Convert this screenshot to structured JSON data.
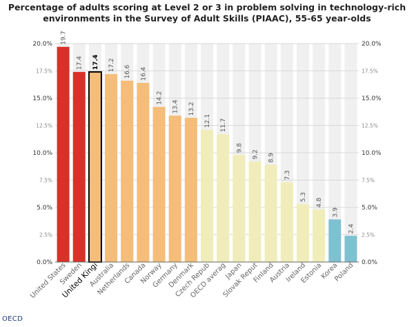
{
  "chart_data": {
    "type": "bar",
    "title_lines": [
      "Percentage of adults scoring at Level 2 or 3 in problem solving in technology-rich",
      "environments in the Survey of Adult Skills (PIAAC), 55-65 year-olds"
    ],
    "categories": [
      "United States",
      "Sweden",
      "United Kingdom",
      "Australia",
      "Netherlands",
      "Canada",
      "Norway",
      "Germany",
      "Denmark",
      "Czech Republic",
      "OECD average",
      "Japan",
      "Slovak Republic",
      "Finland",
      "Austria",
      "Ireland",
      "Estonia",
      "Korea",
      "Poland"
    ],
    "category_labels": [
      "United States",
      "Sweden",
      "United Kingi",
      "Australia",
      "Netherlands",
      "Canada",
      "Norway",
      "Germany",
      "Denmark",
      "Czech Repub",
      "OECD averag",
      "Japan",
      "Slovak Reput",
      "Finland",
      "Austria",
      "Ireland",
      "Estonia",
      "Korea",
      "Poland"
    ],
    "values": [
      19.7,
      17.4,
      17.4,
      17.2,
      16.6,
      16.4,
      14.2,
      13.4,
      13.2,
      12.1,
      11.7,
      9.8,
      9.2,
      8.9,
      7.3,
      5.3,
      4.8,
      3.9,
      2.4
    ],
    "value_labels": [
      "19.7",
      "17.4",
      "17.4",
      "17.2",
      "16.6",
      "16.4",
      "14.2",
      "13.4",
      "13.2",
      "12.1",
      "11.7",
      "9.8",
      "9.2",
      "8.9",
      "7.3",
      "5.3",
      "4.8",
      "3.9",
      "2.4"
    ],
    "bar_colors": [
      "#d8312a",
      "#d8312a",
      "#f4bd79",
      "#f4bd79",
      "#f4bd79",
      "#f4bd79",
      "#f4bd79",
      "#f4bd79",
      "#f4bd79",
      "#f0edba",
      "#f0edba",
      "#f0edba",
      "#f0edba",
      "#f0edba",
      "#f0edba",
      "#f0edba",
      "#f0edba",
      "#7ec1d1",
      "#7ec1d1"
    ],
    "highlighted_category": "United Kingdom",
    "ylim": [
      0,
      20
    ],
    "yticks": [
      {
        "value": 0,
        "label": "0.0%",
        "major": true
      },
      {
        "value": 2.5,
        "label": "2.5%",
        "major": false
      },
      {
        "value": 5,
        "label": "5.0%",
        "major": true
      },
      {
        "value": 7.5,
        "label": "7.5%",
        "major": false
      },
      {
        "value": 10,
        "label": "10.0%",
        "major": true
      },
      {
        "value": 12.5,
        "label": "12.5%",
        "major": false
      },
      {
        "value": 15,
        "label": "15.0%",
        "major": true
      },
      {
        "value": 17.5,
        "label": "17.5%",
        "major": false
      },
      {
        "value": 20,
        "label": "20.0%",
        "major": true
      }
    ],
    "grid": true,
    "colors": {
      "grid": "#d9d9d9",
      "column_background": "#f0f0f0",
      "axis": "#666666",
      "highlight_border": "#000000"
    }
  },
  "footer": {
    "source": "OECD"
  }
}
